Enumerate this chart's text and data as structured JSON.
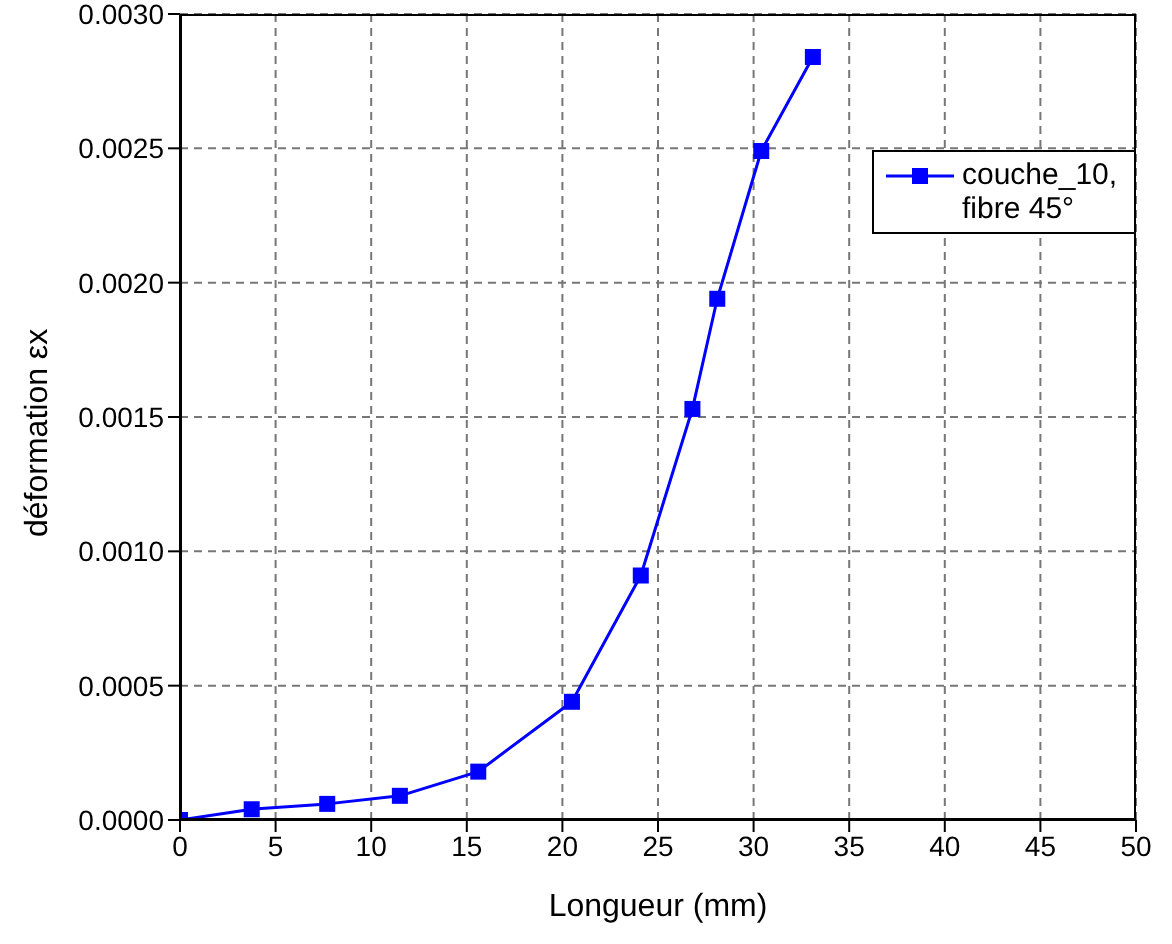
{
  "chart_data": {
    "type": "line",
    "xlabel": "Longueur (mm)",
    "ylabel": "déformation εx",
    "x": [
      0,
      3.75,
      7.7,
      11.5,
      15.6,
      20.5,
      24.1,
      26.8,
      28.1,
      30.4,
      33.1
    ],
    "series": [
      {
        "name": "couche_10, fibre 45°",
        "color": "#0000ff",
        "values": [
          0,
          4e-05,
          6e-05,
          9e-05,
          0.00018,
          0.00044,
          0.00091,
          0.00153,
          0.00194,
          0.00249,
          0.00284
        ]
      }
    ],
    "xlim": [
      0,
      50
    ],
    "xticks": [
      0,
      5,
      10,
      15,
      20,
      25,
      30,
      35,
      40,
      45,
      50
    ],
    "ylim": [
      0,
      0.003
    ],
    "yticks": [
      {
        "value": 0,
        "label": "0.0000"
      },
      {
        "value": 0.0005,
        "label": "0.0005"
      },
      {
        "value": 0.001,
        "label": "0.0010"
      },
      {
        "value": 0.0015,
        "label": "0.0015"
      },
      {
        "value": 0.002,
        "label": "0.0020"
      },
      {
        "value": 0.0025,
        "label": "0.0025"
      },
      {
        "value": 0.003,
        "label": "0.0030"
      }
    ],
    "grid": true,
    "legend": "top right",
    "marker": "square",
    "line_style": "solid"
  }
}
